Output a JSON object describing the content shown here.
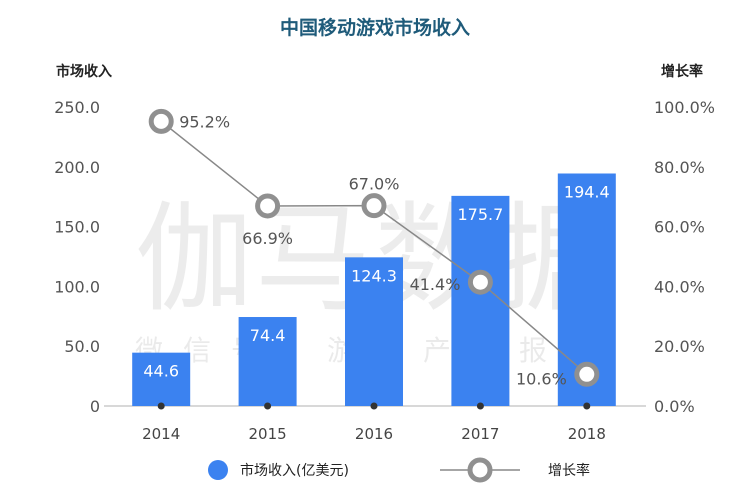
{
  "chart_data": {
    "type": "bar",
    "title": "中国移动游戏市场收入",
    "ylabel": "市场收入",
    "y2label": "增长率",
    "categories": [
      "2014",
      "2015",
      "2016",
      "2017",
      "2018"
    ],
    "series": [
      {
        "name": "市场收入(亿美元)",
        "type": "bar",
        "axis": "left",
        "values": [
          44.6,
          74.4,
          124.3,
          175.7,
          194.4
        ],
        "labels": [
          "44.6",
          "74.4",
          "124.3",
          "175.7",
          "194.4"
        ]
      },
      {
        "name": "增长率",
        "type": "line",
        "axis": "right",
        "values": [
          95.2,
          66.9,
          67.0,
          41.4,
          10.6
        ],
        "labels": [
          "95.2%",
          "66.9%",
          "67.0%",
          "41.4%",
          "10.6%"
        ]
      }
    ],
    "ylim": [
      0,
      250
    ],
    "y2lim": [
      0,
      100
    ],
    "yticks": [
      "0",
      "50.0",
      "100.0",
      "150.0",
      "200.0",
      "250.0"
    ],
    "y2ticks": [
      "0.0%",
      "20.0%",
      "40.0%",
      "60.0%",
      "80.0%",
      "100.0%"
    ],
    "legend_position": "bottom",
    "colors": {
      "bar": "#3b82f0",
      "line": "#888888",
      "marker_ring": "#909090",
      "dot": "#333333"
    }
  },
  "watermark": {
    "main": "伽马数据",
    "sub": "微信号：游戏产业报告"
  }
}
